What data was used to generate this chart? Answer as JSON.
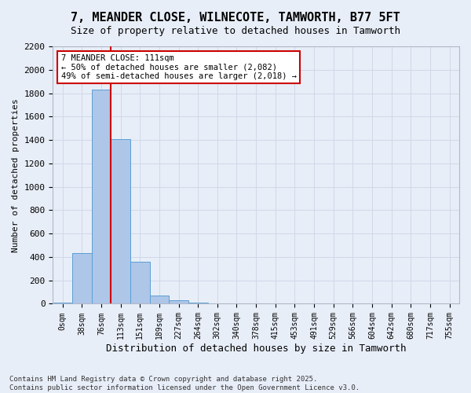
{
  "title": "7, MEANDER CLOSE, WILNECOTE, TAMWORTH, B77 5FT",
  "subtitle": "Size of property relative to detached houses in Tamworth",
  "xlabel": "Distribution of detached houses by size in Tamworth",
  "ylabel": "Number of detached properties",
  "bar_values": [
    10,
    430,
    1830,
    1410,
    360,
    70,
    30,
    10,
    0,
    0,
    0,
    0,
    0,
    0,
    0,
    0,
    0,
    0,
    0,
    0,
    0
  ],
  "bar_labels": [
    "0sqm",
    "38sqm",
    "76sqm",
    "113sqm",
    "151sqm",
    "189sqm",
    "227sqm",
    "264sqm",
    "302sqm",
    "340sqm",
    "378sqm",
    "415sqm",
    "453sqm",
    "491sqm",
    "529sqm",
    "566sqm",
    "604sqm",
    "642sqm",
    "680sqm",
    "717sqm",
    "755sqm"
  ],
  "bar_color": "#aec6e8",
  "bar_edge_color": "#5a9fd4",
  "vline_x": 2.5,
  "vline_color": "#cc0000",
  "annotation_text": "7 MEANDER CLOSE: 111sqm\n← 50% of detached houses are smaller (2,082)\n49% of semi-detached houses are larger (2,018) →",
  "annotation_box_color": "#ffffff",
  "annotation_box_edge": "#cc0000",
  "ylim": [
    0,
    2200
  ],
  "yticks": [
    0,
    200,
    400,
    600,
    800,
    1000,
    1200,
    1400,
    1600,
    1800,
    2000,
    2200
  ],
  "grid_color": "#d0d8e8",
  "bg_color": "#e8eef8",
  "footer": "Contains HM Land Registry data © Crown copyright and database right 2025.\nContains public sector information licensed under the Open Government Licence v3.0."
}
